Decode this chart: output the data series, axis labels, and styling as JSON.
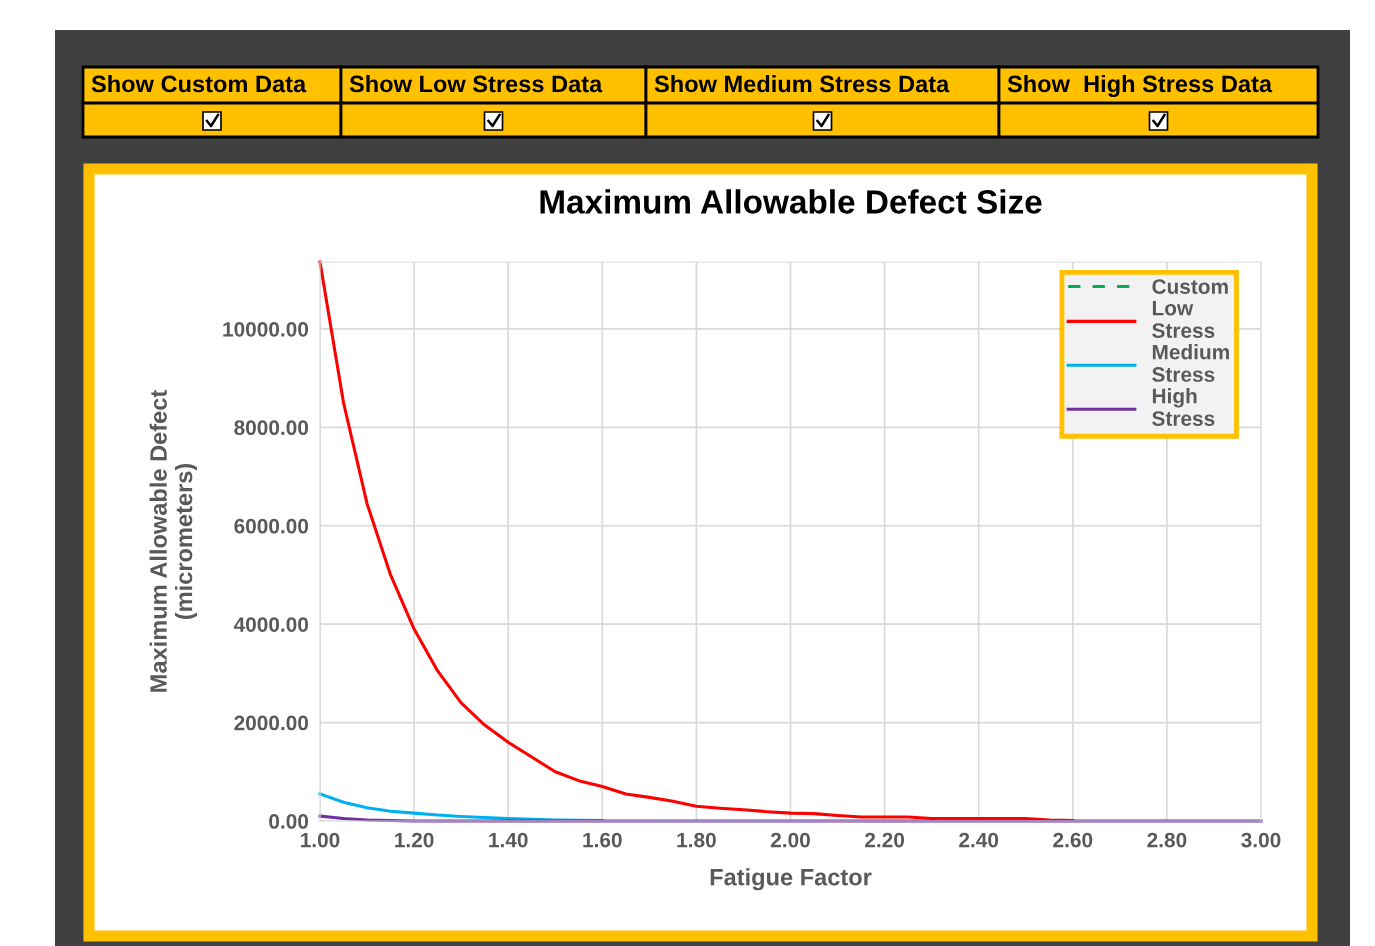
{
  "chart_data": {
    "type": "line",
    "title": "Maximum Allowable Defect Size",
    "xlabel": "Fatigue Factor",
    "ylabel": "Maximum Allowable Defect\n(micrometers)",
    "annotations": [
      "Show Custom Data",
      "Show Low Stress Data",
      "Show Medium Stress Data",
      "Show  High Stress Data"
    ],
    "series": [
      {
        "name": "Custom",
        "color": "#00b050",
        "line_style": "dashed"
      },
      {
        "name": "Low Stress",
        "color": "#ff0000",
        "x": [
          1.0,
          1.05,
          1.1,
          1.15,
          1.2,
          1.25,
          1.3,
          1.35,
          1.4,
          1.45,
          1.5,
          1.55,
          1.6,
          1.65,
          1.7,
          1.75,
          1.8,
          1.85,
          1.9,
          1.95,
          2.0,
          2.05,
          2.1,
          2.15,
          2.2,
          2.25,
          2.3,
          2.4,
          2.5,
          2.55,
          2.6
        ],
        "values": [
          11360,
          8500,
          6450,
          5000,
          3900,
          3050,
          2400,
          1950,
          1600,
          1300,
          1000,
          820,
          700,
          550,
          480,
          400,
          300,
          260,
          230,
          190,
          160,
          150,
          110,
          80,
          80,
          80,
          50,
          50,
          50,
          20,
          10
        ]
      },
      {
        "name": "Medium Stress",
        "color": "#00b0f0",
        "x": [
          1.0,
          1.05,
          1.1,
          1.15,
          1.2,
          1.25,
          1.3,
          1.35,
          1.4,
          1.5,
          1.6
        ],
        "values": [
          550,
          380,
          270,
          200,
          160,
          120,
          90,
          70,
          50,
          20,
          10
        ]
      },
      {
        "name": "High Stress",
        "color": "#7030a0",
        "x": [
          1.0,
          1.05,
          1.1,
          1.2,
          3.0
        ],
        "values": [
          100,
          50,
          20,
          0,
          0
        ]
      }
    ],
    "xlim": [
      1.0,
      3.0
    ],
    "ylim": [
      0,
      11360
    ],
    "xticks": [
      {
        "value": 1.0,
        "label": "1.00"
      },
      {
        "value": 1.2,
        "label": "1.20"
      },
      {
        "value": 1.4,
        "label": "1.40"
      },
      {
        "value": 1.6,
        "label": "1.60"
      },
      {
        "value": 1.8,
        "label": "1.80"
      },
      {
        "value": 2.0,
        "label": "2.00"
      },
      {
        "value": 2.2,
        "label": "2.20"
      },
      {
        "value": 2.4,
        "label": "2.40"
      },
      {
        "value": 2.6,
        "label": "2.60"
      },
      {
        "value": 2.8,
        "label": "2.80"
      },
      {
        "value": 3.0,
        "label": "3.00"
      }
    ],
    "yticks": [
      {
        "value": 0,
        "label": "0.00"
      },
      {
        "value": 2000,
        "label": "2000.00"
      },
      {
        "value": 4000,
        "label": "4000.00"
      },
      {
        "value": 6000,
        "label": "6000.00"
      },
      {
        "value": 8000,
        "label": "8000.00"
      },
      {
        "value": 10000,
        "label": "10000.00"
      }
    ],
    "grid": true,
    "legend": "top right",
    "marker": "none",
    "line_style": "solid"
  }
}
